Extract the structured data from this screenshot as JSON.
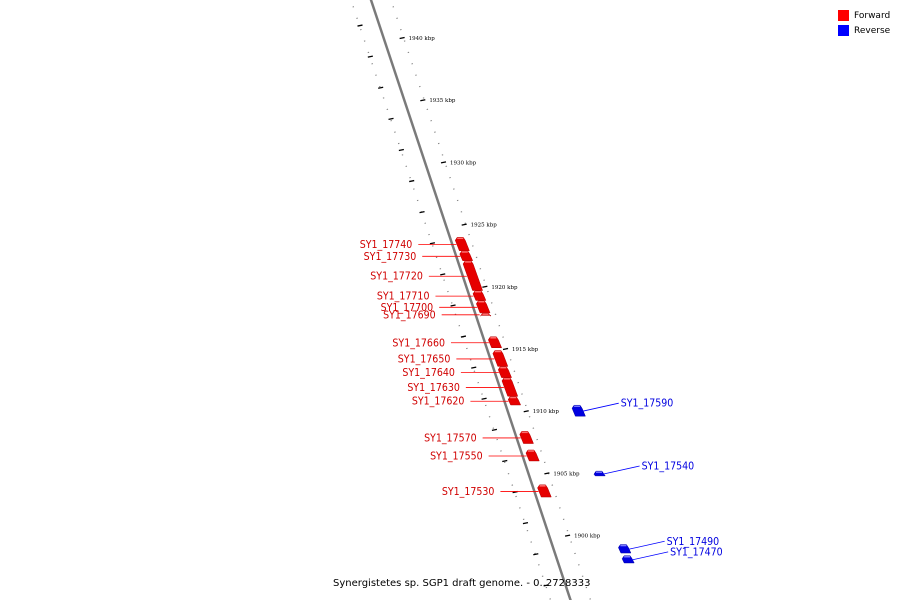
{
  "legend": {
    "forward": {
      "label": "Forward",
      "color": "#ff0000"
    },
    "reverse": {
      "label": "Reverse",
      "color": "#0000ff"
    }
  },
  "caption": "Synergistetes sp. SGP1 draft genome. - 0..2728333",
  "ticks": [
    {
      "kbp": 1940,
      "label": "1940 kbp"
    },
    {
      "kbp": 1935,
      "label": "1935 kbp"
    },
    {
      "kbp": 1930,
      "label": "1930 kbp"
    },
    {
      "kbp": 1925,
      "label": "1925 kbp"
    },
    {
      "kbp": 1920,
      "label": "1920 kbp"
    },
    {
      "kbp": 1915,
      "label": "1915 kbp"
    },
    {
      "kbp": 1910,
      "label": "1910 kbp"
    },
    {
      "kbp": 1905,
      "label": "1905 kbp"
    },
    {
      "kbp": 1900,
      "label": "1900 kbp"
    }
  ],
  "forward_genes": [
    {
      "id": "SY1_17740",
      "start_kbp": 1923.9,
      "end_kbp": 1922.9
    },
    {
      "id": "SY1_17730",
      "start_kbp": 1922.8,
      "end_kbp": 1922.1
    },
    {
      "id": "SY1_17720",
      "start_kbp": 1922.0,
      "end_kbp": 1919.7
    },
    {
      "id": "SY1_17710",
      "start_kbp": 1919.6,
      "end_kbp": 1918.9
    },
    {
      "id": "SY1_17700",
      "start_kbp": 1918.8,
      "end_kbp": 1917.9
    },
    {
      "id": "SY1_17690",
      "start_kbp": 1917.8,
      "end_kbp": 1917.7
    },
    {
      "id": "SY1_17660",
      "start_kbp": 1915.9,
      "end_kbp": 1915.1
    },
    {
      "id": "SY1_17650",
      "start_kbp": 1914.8,
      "end_kbp": 1913.6
    },
    {
      "id": "SY1_17640",
      "start_kbp": 1913.5,
      "end_kbp": 1912.7
    },
    {
      "id": "SY1_17630",
      "start_kbp": 1912.6,
      "end_kbp": 1911.2
    },
    {
      "id": "SY1_17620",
      "start_kbp": 1911.1,
      "end_kbp": 1910.5
    },
    {
      "id": "SY1_17570",
      "start_kbp": 1908.3,
      "end_kbp": 1907.4
    },
    {
      "id": "SY1_17550",
      "start_kbp": 1906.8,
      "end_kbp": 1906.0
    },
    {
      "id": "SY1_17530",
      "start_kbp": 1904.0,
      "end_kbp": 1903.1
    }
  ],
  "reverse_genes": [
    {
      "id": "SY1_17590",
      "start_kbp": 1910.4,
      "end_kbp": 1909.6
    },
    {
      "id": "SY1_17540",
      "start_kbp": 1905.1,
      "end_kbp": 1904.8
    },
    {
      "id": "SY1_17490",
      "start_kbp": 1899.2,
      "end_kbp": 1898.6
    },
    {
      "id": "SY1_17470",
      "start_kbp": 1898.3,
      "end_kbp": 1897.8
    }
  ]
}
